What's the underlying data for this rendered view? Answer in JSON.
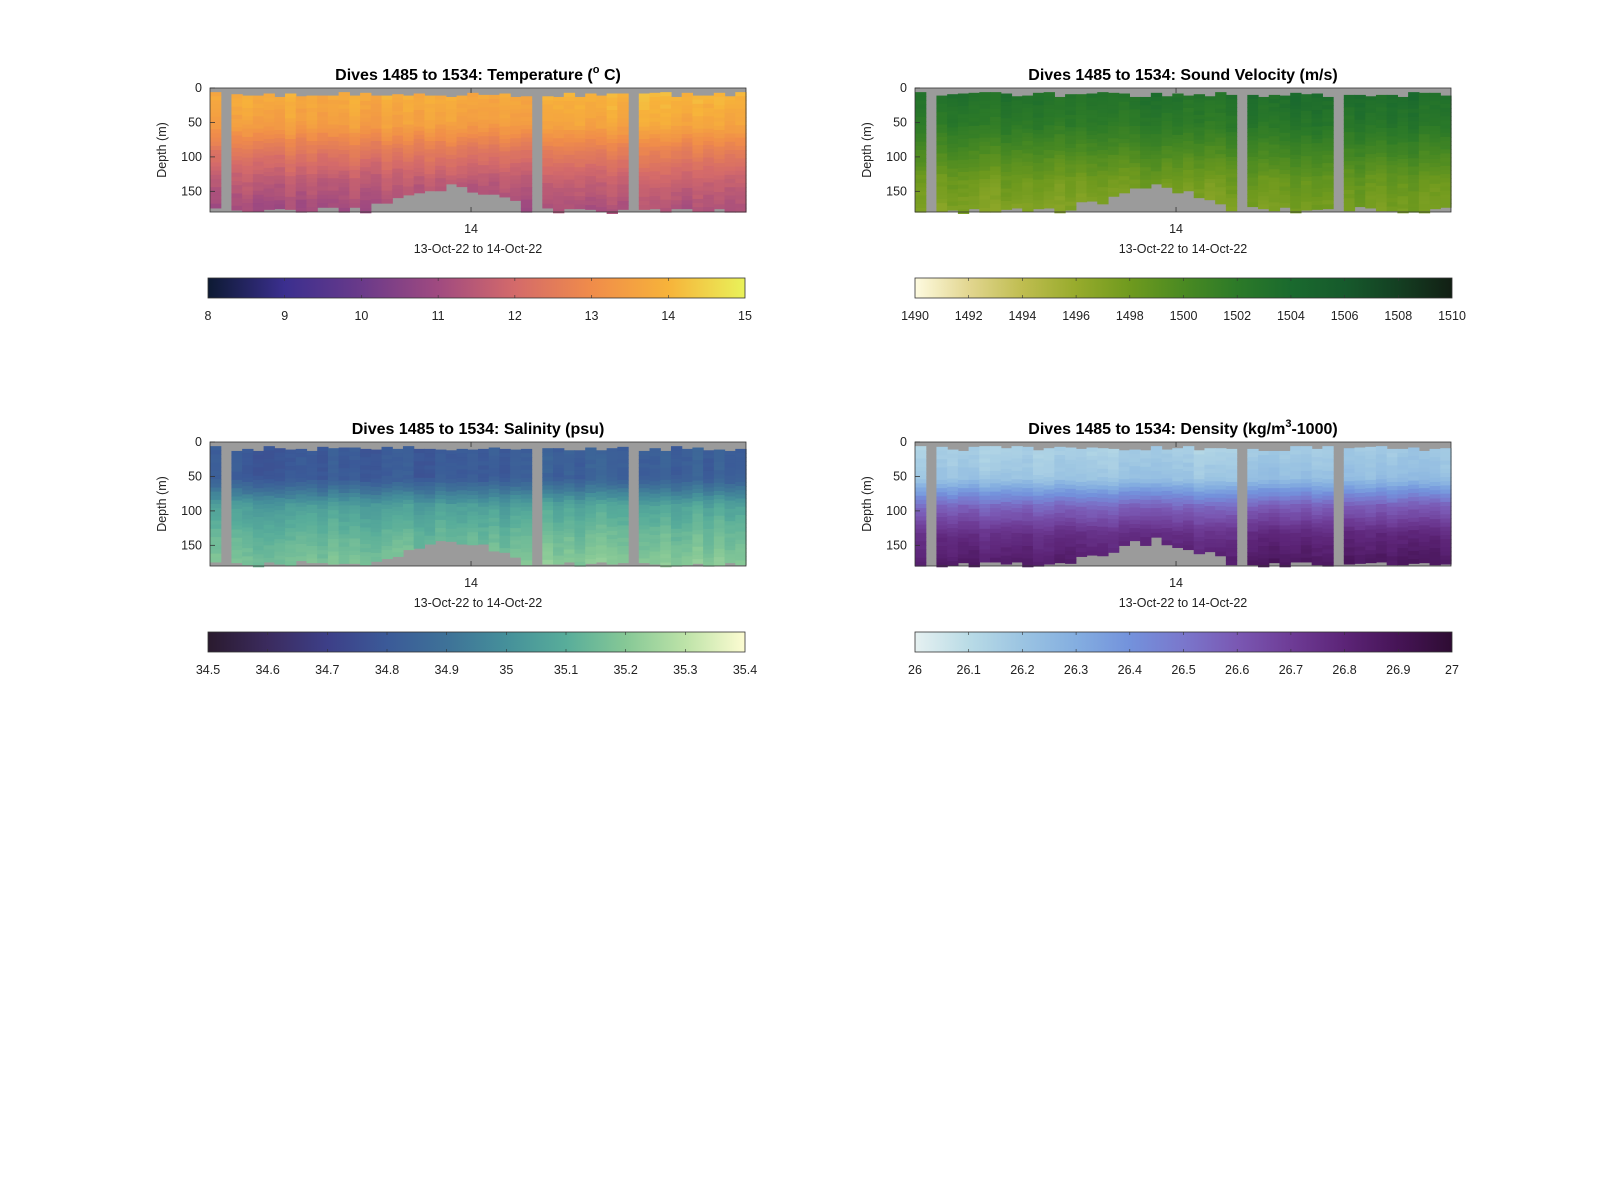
{
  "chart_data": [
    {
      "type": "heatmap",
      "variable": "temperature",
      "title_main": "Dives 1485 to 1534: Temperature (",
      "title_sup": "o",
      "title_end": " C)",
      "ylabel": "Depth (m)",
      "xlabel": "13-Oct-22 to 14-Oct-22",
      "x_tick_labels": [
        "14"
      ],
      "y_tick_labels": [
        "0",
        "50",
        "100",
        "150"
      ],
      "ylim": [
        0,
        180
      ],
      "yreverse": true,
      "colorbar": {
        "min": 8,
        "max": 15,
        "tick_labels": [
          "8",
          "9",
          "10",
          "11",
          "12",
          "13",
          "14",
          "15"
        ],
        "colors": [
          "#0d1a33",
          "#3b2f8f",
          "#6a3a8a",
          "#a04a80",
          "#d46a6a",
          "#f08c4a",
          "#f7b33a",
          "#e9f25a"
        ]
      },
      "colormap": "thermal",
      "profile_values": [
        {
          "depth": 10,
          "value": 13.8
        },
        {
          "depth": 50,
          "value": 13.5
        },
        {
          "depth": 90,
          "value": 12.4
        },
        {
          "depth": 130,
          "value": 11.6
        },
        {
          "depth": 175,
          "value": 11.0
        }
      ],
      "nodata_color": "#9b9b9b"
    },
    {
      "type": "heatmap",
      "variable": "sound_velocity",
      "title_main": "Dives 1485 to 1534: Sound Velocity (m/s)",
      "title_sup": "",
      "title_end": "",
      "ylabel": "Depth (m)",
      "xlabel": "13-Oct-22 to 14-Oct-22",
      "x_tick_labels": [
        "14"
      ],
      "y_tick_labels": [
        "0",
        "50",
        "100",
        "150"
      ],
      "ylim": [
        0,
        180
      ],
      "yreverse": true,
      "colorbar": {
        "min": 1490,
        "max": 1510,
        "tick_labels": [
          "1490",
          "1492",
          "1494",
          "1496",
          "1498",
          "1500",
          "1502",
          "1504",
          "1506",
          "1508",
          "1510"
        ],
        "colors": [
          "#fefbe0",
          "#e2d690",
          "#bfbd50",
          "#97ab2c",
          "#6f9a1e",
          "#4a8a22",
          "#2c7a28",
          "#1a6a2e",
          "#165a2c",
          "#143f22",
          "#121f14"
        ]
      },
      "colormap": "speed",
      "profile_values": [
        {
          "depth": 10,
          "value": 1503.0
        },
        {
          "depth": 50,
          "value": 1502.0
        },
        {
          "depth": 90,
          "value": 1500.0
        },
        {
          "depth": 130,
          "value": 1498.0
        },
        {
          "depth": 175,
          "value": 1497.0
        }
      ],
      "nodata_color": "#9b9b9b"
    },
    {
      "type": "heatmap",
      "variable": "salinity",
      "title_main": "Dives 1485 to 1534: Salinity (psu)",
      "title_sup": "",
      "title_end": "",
      "ylabel": "Depth (m)",
      "xlabel": "13-Oct-22 to 14-Oct-22",
      "x_tick_labels": [
        "14"
      ],
      "y_tick_labels": [
        "0",
        "50",
        "100",
        "150"
      ],
      "ylim": [
        0,
        180
      ],
      "yreverse": true,
      "colorbar": {
        "min": 34.5,
        "max": 35.4,
        "tick_labels": [
          "34.5",
          "34.6",
          "34.7",
          "34.8",
          "34.9",
          "35",
          "35.1",
          "35.2",
          "35.3",
          "35.4"
        ],
        "colors": [
          "#2a1a2e",
          "#3b2b5e",
          "#3d3f88",
          "#3b5a98",
          "#3e7298",
          "#45909a",
          "#58ad9a",
          "#86c896",
          "#bde3a8",
          "#fdfcd2"
        ]
      },
      "colormap": "haline",
      "profile_values": [
        {
          "depth": 10,
          "value": 34.8
        },
        {
          "depth": 50,
          "value": 34.8
        },
        {
          "depth": 90,
          "value": 35.05
        },
        {
          "depth": 130,
          "value": 35.12
        },
        {
          "depth": 175,
          "value": 35.18
        }
      ],
      "nodata_color": "#9b9b9b"
    },
    {
      "type": "heatmap",
      "variable": "density",
      "title_main": "Dives 1485 to 1534: Density (kg/m",
      "title_sup": "3",
      "title_end": "-1000)",
      "ylabel": "Depth (m)",
      "xlabel": "13-Oct-22 to 14-Oct-22",
      "x_tick_labels": [
        "14"
      ],
      "y_tick_labels": [
        "0",
        "50",
        "100",
        "150"
      ],
      "ylim": [
        0,
        180
      ],
      "yreverse": true,
      "colorbar": {
        "min": 26,
        "max": 27,
        "tick_labels": [
          "26",
          "26.1",
          "26.2",
          "26.3",
          "26.4",
          "26.5",
          "26.6",
          "26.7",
          "26.8",
          "26.9",
          "27"
        ],
        "colors": [
          "#e6f1f1",
          "#b9dbe6",
          "#9bc4e2",
          "#84aee0",
          "#7392dc",
          "#7a77cc",
          "#7a58b3",
          "#6e3c96",
          "#5c2477",
          "#461456",
          "#2e0c33"
        ]
      },
      "colormap": "dense",
      "profile_values": [
        {
          "depth": 10,
          "value": 26.15
        },
        {
          "depth": 50,
          "value": 26.2
        },
        {
          "depth": 90,
          "value": 26.55
        },
        {
          "depth": 130,
          "value": 26.75
        },
        {
          "depth": 175,
          "value": 26.85
        }
      ],
      "nodata_color": "#9b9b9b"
    }
  ]
}
